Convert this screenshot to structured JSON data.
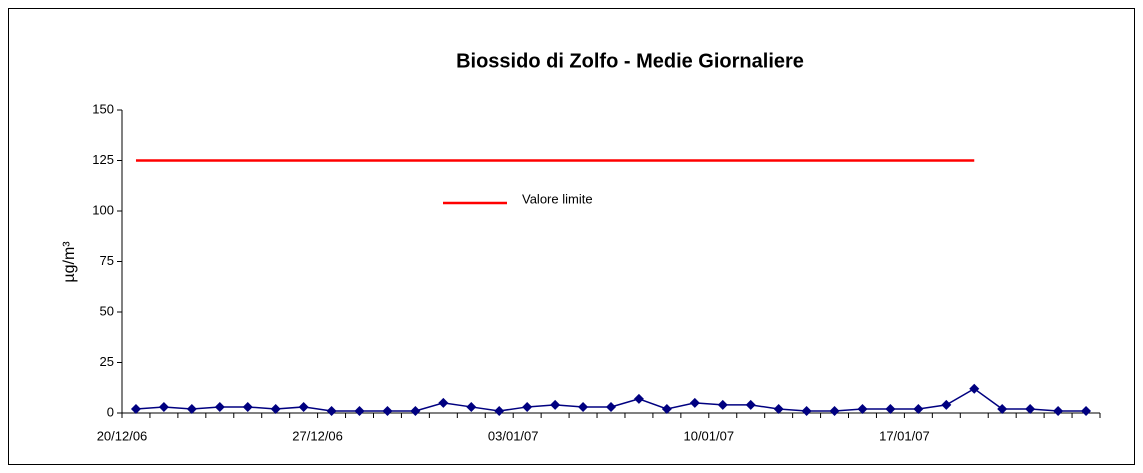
{
  "chart_data": {
    "type": "line",
    "title": "Biossido di Zolfo -  Medie Giornaliere",
    "y_label": "µg/m³",
    "categories": [
      "20/12/06",
      null,
      null,
      null,
      null,
      null,
      null,
      "27/12/06",
      null,
      null,
      null,
      null,
      null,
      null,
      "03/01/07",
      null,
      null,
      null,
      null,
      null,
      null,
      "10/01/07",
      null,
      null,
      null,
      null,
      null,
      null,
      "17/01/07",
      null,
      null,
      null,
      null,
      null,
      null
    ],
    "series": [
      {
        "name": null,
        "color": "#000080",
        "marker": "diamond",
        "values": [
          2,
          3,
          2,
          3,
          3,
          2,
          3,
          1,
          1,
          1,
          1,
          5,
          3,
          1,
          3,
          4,
          3,
          3,
          7,
          2,
          5,
          4,
          4,
          2,
          1,
          1,
          2,
          2,
          2,
          4,
          12,
          2,
          2,
          1,
          1
        ]
      },
      {
        "name": "Valore limite",
        "color": "#ff0000",
        "marker": "none",
        "values": [
          125,
          125,
          125,
          125,
          125,
          125,
          125,
          125,
          125,
          125,
          125,
          125,
          125,
          125,
          125,
          125,
          125,
          125,
          125,
          125,
          125,
          125,
          125,
          125,
          125,
          125,
          125,
          125,
          125,
          125,
          125,
          null,
          null,
          null,
          null
        ]
      }
    ],
    "ylim": [
      0,
      150
    ],
    "yticks": [
      0,
      25,
      50,
      75,
      100,
      125,
      150
    ],
    "grid": false
  }
}
